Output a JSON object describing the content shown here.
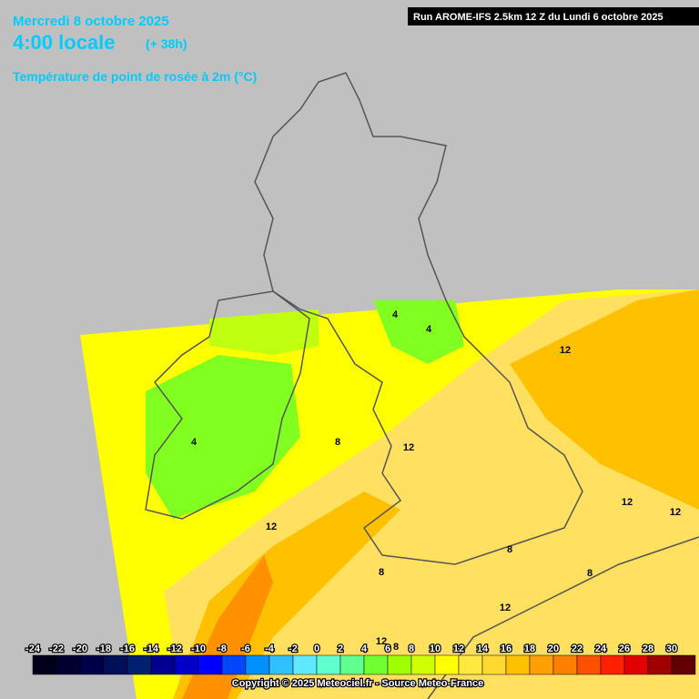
{
  "header": {
    "date": "Mercredi 8 octobre 2025",
    "time": "4:00 locale",
    "lead": "(+ 38h)",
    "parameter": "Température de point de rosée à 2m (°C)"
  },
  "run": "Run AROME-IFS 2.5km 12 Z du Lundi 6 octobre 2025",
  "contour_labels": [
    "4",
    "4",
    "4",
    "8",
    "8",
    "8",
    "8",
    "8",
    "12",
    "12",
    "12",
    "12",
    "12",
    "12",
    "12"
  ],
  "legend": {
    "ticks": [
      -24,
      -22,
      -20,
      -18,
      -16,
      -14,
      -12,
      -10,
      -8,
      -6,
      -4,
      -2,
      0,
      2,
      4,
      6,
      8,
      10,
      12,
      14,
      16,
      18,
      20,
      22,
      24,
      26,
      28,
      30
    ],
    "colors": [
      "#00001a",
      "#000030",
      "#000048",
      "#001058",
      "#002070",
      "#000090",
      "#0000c8",
      "#0000ff",
      "#0048ff",
      "#0090ff",
      "#30c0ff",
      "#60e8ff",
      "#60ffd0",
      "#60ff90",
      "#70ff30",
      "#a0ff00",
      "#d0ff00",
      "#ffff00",
      "#ffe840",
      "#ffd830",
      "#ffc000",
      "#ffa000",
      "#ff8000",
      "#ff5000",
      "#ff2000",
      "#e00000",
      "#a00000",
      "#600000"
    ]
  },
  "copyright": "Copyright © 2025 Meteociel.fr - Source Meteo-France"
}
